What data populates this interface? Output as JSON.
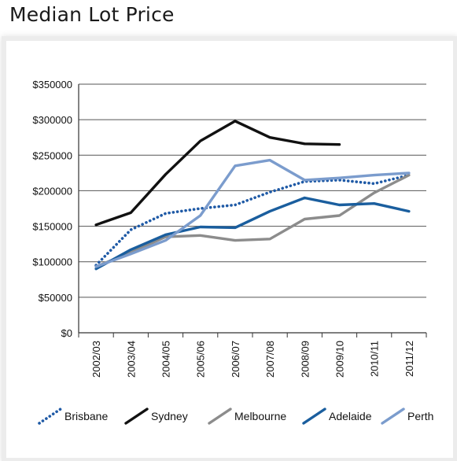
{
  "title": "Median Lot Price",
  "chart_data": {
    "type": "line",
    "title": "Median Lot Price",
    "xlabel": "",
    "ylabel": "",
    "categories": [
      "2002/03",
      "2003/04",
      "2004/05",
      "2005/06",
      "2006/07",
      "2007/08",
      "2008/09",
      "2009/10",
      "2010/11",
      "2011/12"
    ],
    "ylim": [
      0,
      350000
    ],
    "yticks": [
      0,
      50000,
      100000,
      150000,
      200000,
      250000,
      300000,
      350000
    ],
    "ytick_labels": [
      "$0",
      "$50000",
      "$100000",
      "$150000",
      "$200000",
      "$250000",
      "$300000",
      "$350000"
    ],
    "grid": "horizontal",
    "legend_position": "bottom",
    "series": [
      {
        "name": "Brisbane",
        "color": "#1f5aa6",
        "style": "dotted",
        "values": [
          95000,
          145000,
          168000,
          175000,
          180000,
          198000,
          213000,
          215000,
          210000,
          222000
        ]
      },
      {
        "name": "Sydney",
        "color": "#111111",
        "style": "solid",
        "values": [
          152000,
          169000,
          223000,
          270000,
          298000,
          275000,
          266000,
          265000,
          null,
          null
        ]
      },
      {
        "name": "Melbourne",
        "color": "#8c8c8c",
        "style": "solid",
        "values": [
          93000,
          113000,
          135000,
          137000,
          130000,
          132000,
          160000,
          165000,
          197000,
          222000
        ]
      },
      {
        "name": "Adelaide",
        "color": "#1a5e9e",
        "style": "solid",
        "values": [
          90000,
          117000,
          138000,
          149000,
          148000,
          171000,
          190000,
          180000,
          182000,
          171000
        ]
      },
      {
        "name": "Perth",
        "color": "#7b9ccd",
        "style": "solid",
        "values": [
          93000,
          111000,
          130000,
          165000,
          235000,
          243000,
          215000,
          218000,
          222000,
          225000
        ]
      }
    ]
  }
}
